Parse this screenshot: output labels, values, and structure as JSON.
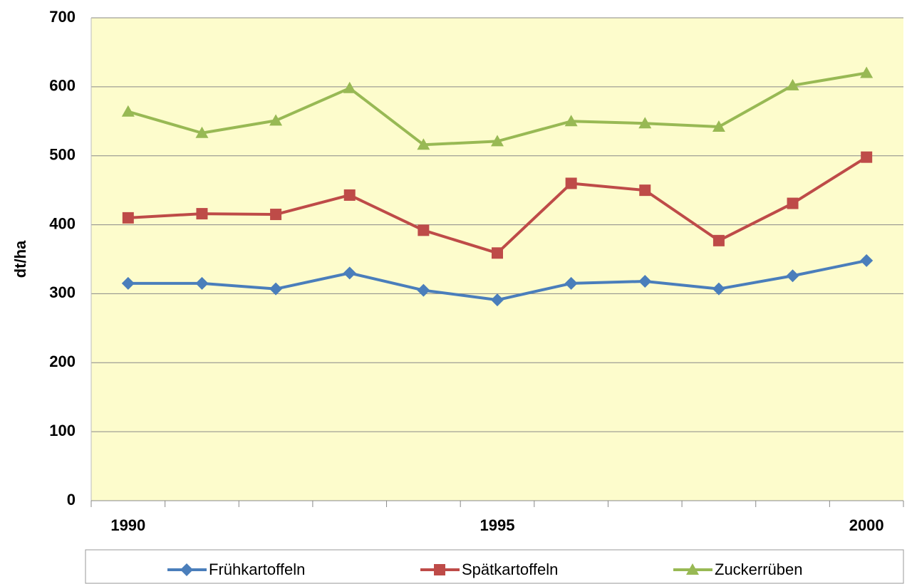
{
  "chart_data": {
    "type": "line",
    "y_label": "dt/ha",
    "categories": [
      "1990",
      null,
      null,
      null,
      null,
      "1995",
      null,
      null,
      null,
      null,
      "2000"
    ],
    "ylim": [
      0,
      700
    ],
    "yticks": [
      0,
      100,
      200,
      300,
      400,
      500,
      600,
      700
    ],
    "grid": true,
    "background": "#fdfccc",
    "legend": "bottom",
    "series": [
      {
        "name": "Frühkartoffeln",
        "color": "#4a7ebb",
        "marker": "diamond",
        "values": [
          315,
          315,
          307,
          330,
          305,
          291,
          315,
          318,
          307,
          326,
          348
        ]
      },
      {
        "name": "Spätkartoffeln",
        "color": "#be4b48",
        "marker": "square",
        "values": [
          410,
          416,
          415,
          443,
          392,
          359,
          460,
          450,
          377,
          431,
          498
        ]
      },
      {
        "name": "Zuckerrüben",
        "color": "#98b954",
        "marker": "triangle",
        "values": [
          564,
          533,
          551,
          598,
          516,
          521,
          550,
          547,
          542,
          602,
          620
        ]
      }
    ]
  }
}
